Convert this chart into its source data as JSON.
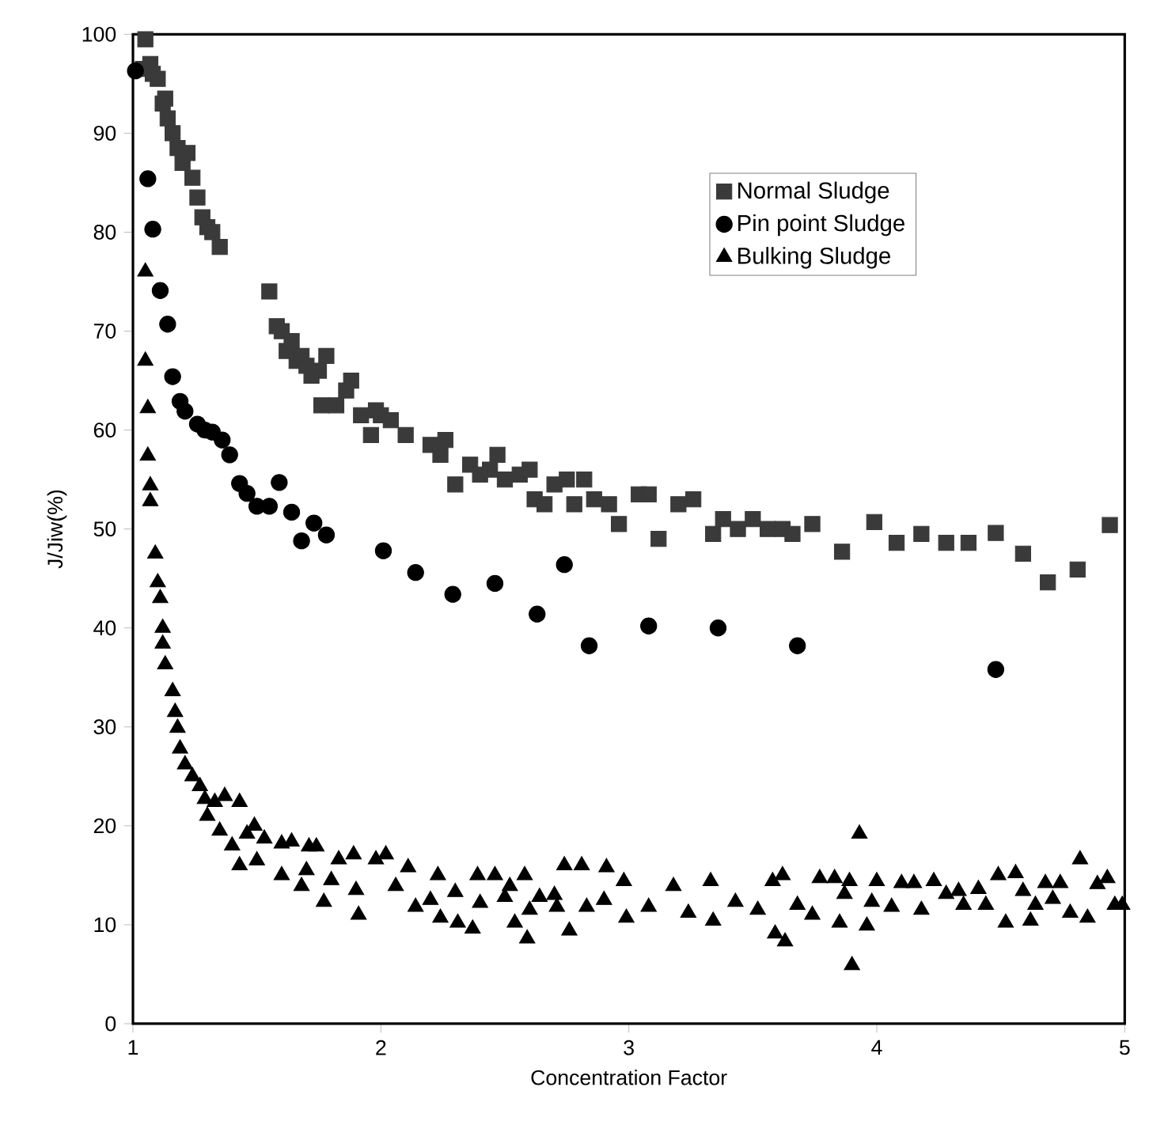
{
  "chart_data": {
    "type": "scatter",
    "xlabel": "Concentration Factor",
    "ylabel": "J/Jiw(%)",
    "xlim": [
      1,
      5
    ],
    "ylim": [
      0,
      100
    ],
    "xticks": [
      1,
      2,
      3,
      4,
      5
    ],
    "yticks": [
      0,
      10,
      20,
      30,
      40,
      50,
      60,
      70,
      80,
      90,
      100
    ],
    "grid": false,
    "legend": "top right",
    "series": [
      {
        "name": "Normal Sludge",
        "color": "#3a3a3a",
        "marker": "square",
        "x": [
          1.05,
          1.04,
          1.07,
          1.08,
          1.1,
          1.12,
          1.13,
          1.14,
          1.16,
          1.18,
          1.2,
          1.22,
          1.24,
          1.26,
          1.28,
          1.3,
          1.32,
          1.35,
          1.55,
          1.58,
          1.6,
          1.62,
          1.64,
          1.66,
          1.68,
          1.7,
          1.72,
          1.75,
          1.78,
          1.76,
          1.82,
          1.86,
          1.88,
          1.92,
          1.96,
          1.98,
          2.0,
          2.04,
          2.1,
          2.2,
          2.24,
          2.26,
          2.3,
          2.36,
          2.4,
          2.44,
          2.47,
          2.5,
          2.56,
          2.6,
          2.62,
          2.66,
          2.7,
          2.75,
          2.78,
          2.82,
          2.86,
          2.92,
          2.96,
          3.04,
          3.08,
          3.12,
          3.2,
          3.26,
          3.34,
          3.38,
          3.44,
          3.5,
          3.56,
          3.62,
          3.66,
          3.74,
          3.86,
          3.99,
          4.08,
          4.18,
          4.28,
          4.37,
          4.48,
          4.59,
          4.69,
          4.81,
          4.94
        ],
        "values": [
          99.5,
          96.5,
          97,
          96,
          95.5,
          93,
          93.5,
          91.5,
          90,
          88.5,
          87,
          88,
          85.5,
          83.5,
          81.5,
          80.5,
          80,
          78.5,
          74,
          70.5,
          70,
          68,
          69,
          67,
          67.5,
          66.5,
          65.5,
          66,
          67.5,
          62.5,
          62.5,
          64,
          65,
          61.5,
          59.5,
          62,
          61.5,
          61,
          59.5,
          58.5,
          57.5,
          59,
          54.5,
          56.5,
          55.5,
          56,
          57.5,
          55,
          55.5,
          56,
          53,
          52.5,
          54.5,
          55,
          52.5,
          55,
          53,
          52.5,
          50.5,
          53.5,
          53.5,
          49,
          52.5,
          53,
          49.5,
          51,
          50,
          51,
          50,
          50,
          49.5,
          50.5,
          47.7,
          50.7,
          48.6,
          49.5,
          48.6,
          48.6,
          49.6,
          47.5,
          44.6,
          45.9,
          50.4
        ]
      },
      {
        "name": "Pin point Sludge",
        "color": "#000000",
        "marker": "circle",
        "x": [
          1.01,
          1.06,
          1.08,
          1.11,
          1.14,
          1.16,
          1.19,
          1.21,
          1.26,
          1.29,
          1.32,
          1.36,
          1.39,
          1.43,
          1.46,
          1.5,
          1.55,
          1.59,
          1.64,
          1.68,
          1.73,
          1.78,
          2.01,
          2.14,
          2.29,
          2.46,
          2.63,
          2.74,
          2.84,
          3.08,
          3.36,
          3.68,
          4.48
        ],
        "values": [
          96.3,
          85.4,
          80.3,
          74.1,
          70.7,
          65.4,
          62.9,
          61.9,
          60.6,
          60,
          59.8,
          59,
          57.5,
          54.6,
          53.6,
          52.3,
          52.3,
          54.7,
          51.7,
          48.8,
          50.6,
          49.4,
          47.8,
          45.6,
          43.4,
          44.5,
          41.4,
          46.4,
          38.2,
          40.2,
          40,
          38.2,
          35.8
        ]
      },
      {
        "name": "Bulking Sludge",
        "color": "#000000",
        "marker": "triangle",
        "x": [
          1.05,
          1.05,
          1.06,
          1.06,
          1.07,
          1.07,
          1.09,
          1.1,
          1.11,
          1.12,
          1.12,
          1.13,
          1.16,
          1.17,
          1.18,
          1.19,
          1.21,
          1.24,
          1.27,
          1.29,
          1.3,
          1.33,
          1.35,
          1.37,
          1.4,
          1.43,
          1.46,
          1.49,
          1.5,
          1.53,
          1.43,
          1.6,
          1.64,
          1.7,
          1.71,
          1.74,
          1.6,
          1.68,
          1.77,
          1.8,
          1.83,
          1.89,
          1.9,
          1.91,
          1.98,
          2.02,
          2.06,
          2.11,
          2.14,
          2.2,
          2.23,
          2.24,
          2.3,
          2.31,
          2.37,
          2.39,
          2.4,
          2.46,
          2.5,
          2.52,
          2.54,
          2.58,
          2.59,
          2.6,
          2.64,
          2.7,
          2.71,
          2.74,
          2.81,
          2.76,
          2.83,
          2.9,
          2.91,
          2.98,
          2.99,
          3.08,
          3.18,
          3.24,
          3.33,
          3.34,
          3.43,
          3.52,
          3.58,
          3.59,
          3.62,
          3.63,
          3.68,
          3.74,
          3.77,
          3.83,
          3.85,
          3.87,
          3.89,
          3.9,
          3.93,
          3.96,
          3.98,
          4.0,
          4.06,
          4.1,
          4.15,
          4.18,
          4.23,
          4.28,
          4.33,
          4.35,
          4.41,
          4.44,
          4.49,
          4.52,
          4.56,
          4.59,
          4.62,
          4.64,
          4.68,
          4.71,
          4.74,
          4.78,
          4.82,
          4.85,
          4.89,
          4.93,
          4.96,
          4.99
        ],
        "values": [
          76,
          67,
          62.2,
          57.4,
          54.4,
          52.8,
          47.5,
          44.6,
          43,
          40,
          38.4,
          36.3,
          33.6,
          31.5,
          29.9,
          27.8,
          26.2,
          25,
          24,
          22.7,
          21,
          22.4,
          19.5,
          23,
          18,
          22.4,
          19.2,
          20,
          16.5,
          18.7,
          16,
          18.2,
          18.4,
          15.5,
          17.9,
          17.9,
          15,
          13.9,
          12.3,
          14.5,
          16.6,
          17.1,
          13.5,
          11,
          16.6,
          17.1,
          13.9,
          15.8,
          11.8,
          12.5,
          15,
          10.7,
          13.3,
          10.2,
          9.6,
          15,
          12.2,
          15,
          12.8,
          13.9,
          10.2,
          15,
          8.6,
          11.5,
          12.8,
          13,
          11.8,
          16,
          16,
          9.4,
          11.8,
          12.5,
          15.8,
          14.4,
          10.7,
          11.8,
          13.9,
          11.2,
          14.4,
          10.4,
          12.3,
          11.5,
          14.4,
          9.1,
          15,
          8.3,
          12,
          11,
          14.7,
          14.7,
          10.2,
          13.1,
          14.4,
          5.9,
          19.2,
          9.9,
          12.3,
          14.4,
          11.8,
          14.2,
          14.2,
          11.5,
          14.4,
          13.1,
          13.4,
          12,
          13.6,
          12,
          15,
          10.2,
          15.2,
          13.4,
          10.4,
          12,
          14.2,
          12.6,
          14.2,
          11.2,
          16.6,
          10.7,
          14.1,
          14.7,
          12,
          12
        ]
      }
    ]
  }
}
